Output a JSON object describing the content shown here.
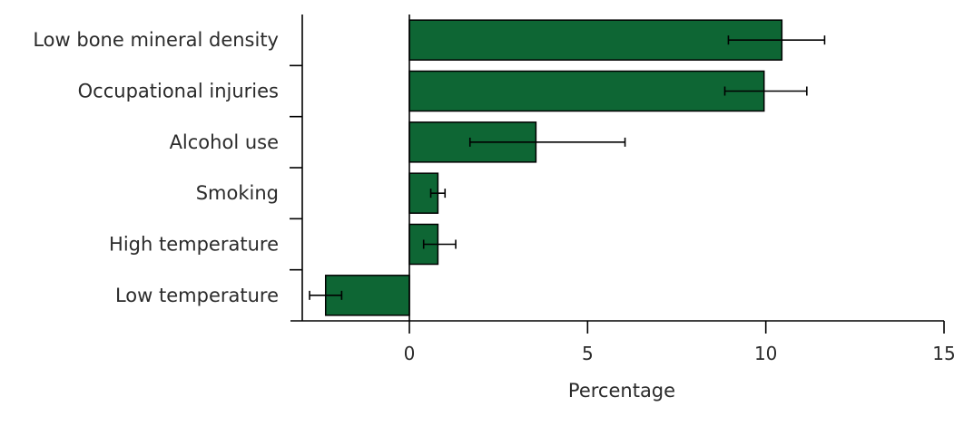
{
  "chart_data": {
    "type": "bar",
    "orientation": "horizontal",
    "categories": [
      "Low bone mineral density",
      "Occupational injuries",
      "Alcohol use",
      "Smoking",
      "High temperature",
      "Low temperature"
    ],
    "values": [
      10.45,
      9.95,
      3.55,
      0.8,
      0.8,
      -2.35
    ],
    "error_low": [
      8.95,
      8.85,
      1.7,
      0.6,
      0.4,
      -2.8
    ],
    "error_high": [
      11.65,
      11.15,
      6.05,
      1.0,
      1.3,
      -1.9
    ],
    "xlabel": "Percentage",
    "ylabel": "",
    "title": "",
    "xlim": [
      -3.2,
      15
    ],
    "xticks": [
      0,
      5,
      10,
      15
    ],
    "grid": false,
    "colors": {
      "bar": "#0e6634",
      "axis": "#000000"
    }
  }
}
